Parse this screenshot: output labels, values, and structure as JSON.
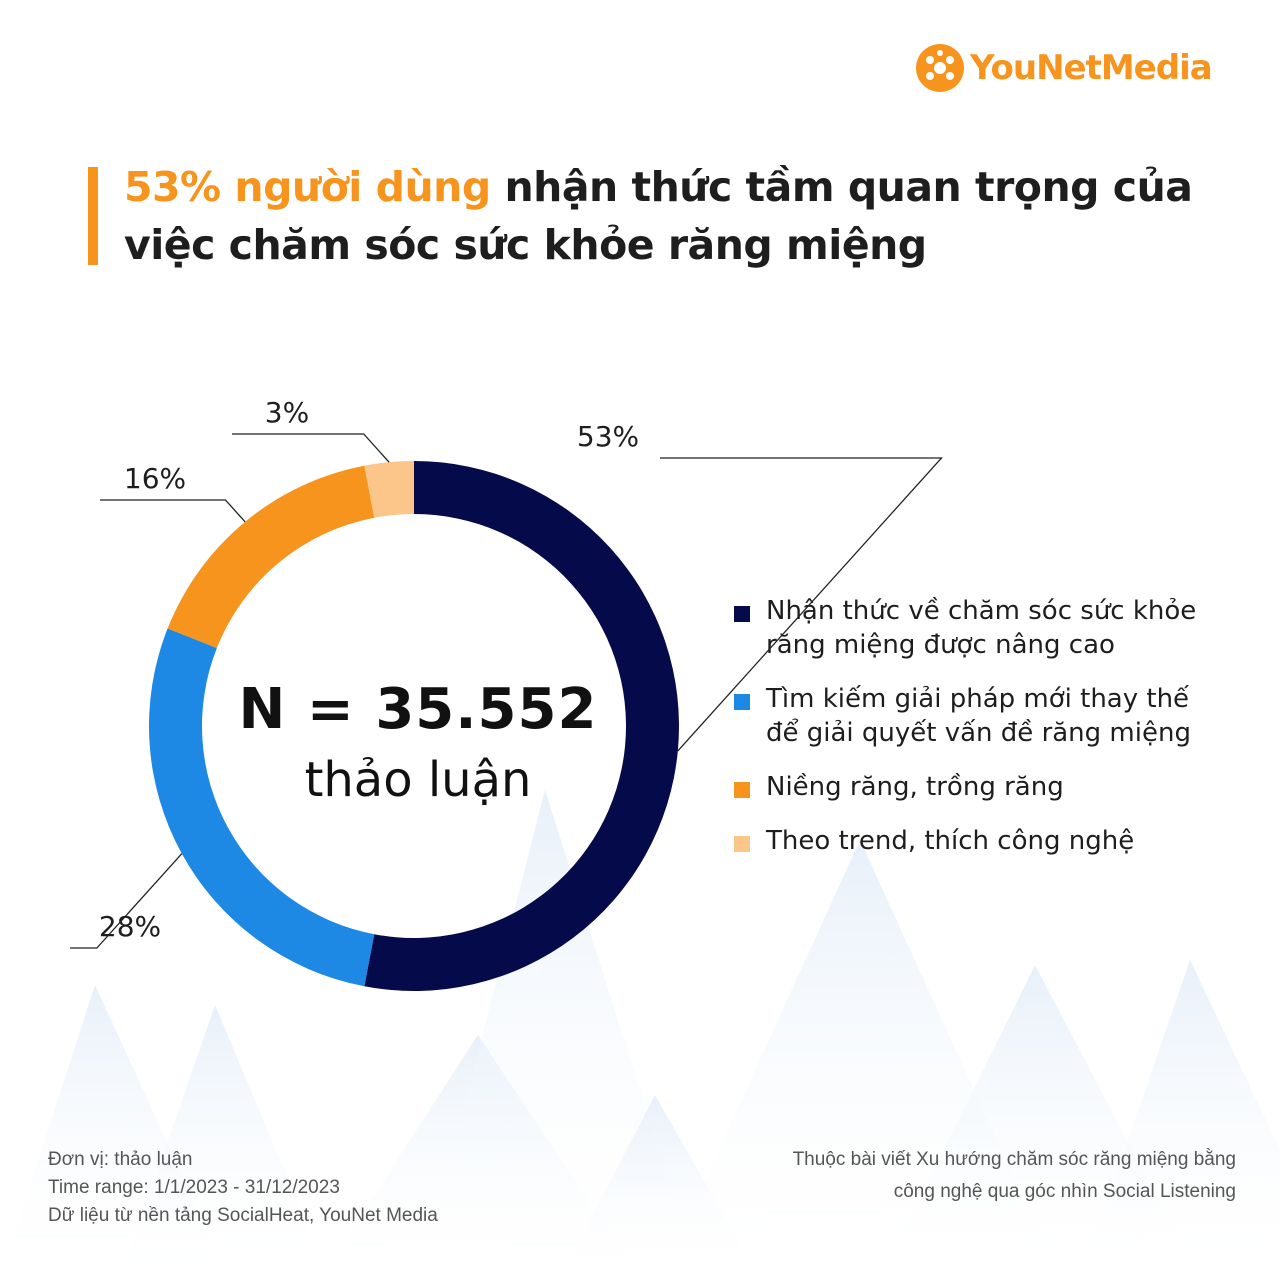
{
  "logo": {
    "you": "YouNet",
    "media": "Media",
    "color": "#f7941d"
  },
  "title": {
    "highlight": "53% người dùng",
    "rest": " nhận thức tầm quan trọng của việc chăm sóc sức khỏe răng miệng"
  },
  "center": {
    "n_label": "N = 35.552",
    "unit": "thảo luận"
  },
  "chart_data": {
    "type": "pie",
    "variant": "donut",
    "total": 35552,
    "unit": "thảo luận",
    "categories": [
      "Nhận thức về chăm sóc sức khỏe răng miệng được nâng cao",
      "Tìm kiếm giải pháp mới thay thế để giải quyết vấn đề răng miệng",
      "Niềng răng, trồng răng",
      "Theo trend, thích công nghệ"
    ],
    "values": [
      53,
      28,
      16,
      3
    ],
    "labels": [
      "53%",
      "28%",
      "16%",
      "3%"
    ],
    "colors": [
      "#050a4a",
      "#1e88e5",
      "#f7941d",
      "#fcc58a"
    ],
    "legend_position": "right"
  },
  "footer": {
    "unit": "Đơn vị: thảo luận",
    "time_range": "Time range: 1/1/2023 - 31/12/2023",
    "source": "Dữ liệu từ nền tảng SocialHeat, YouNet Media",
    "article_line1": "Thuộc bài viết Xu hướng chăm sóc răng miệng bằng",
    "article_line2": "công nghệ qua góc nhìn Social Listening"
  }
}
